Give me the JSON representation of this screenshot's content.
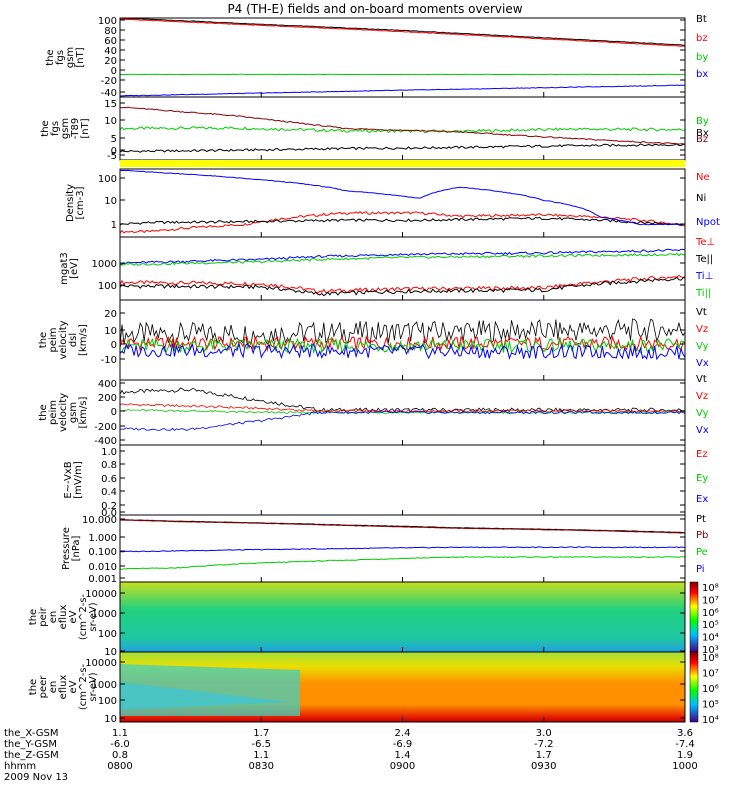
{
  "title": "P4 (TH-E) fields and on-board moments overview",
  "colors": {
    "black": "#000000",
    "red": "#ff0000",
    "green": "#00cc00",
    "blue": "#0000ff",
    "darkred": "#880000",
    "yellow": "#ffff00"
  },
  "time_labels": [
    "0800",
    "0830",
    "0900",
    "0930",
    "1000"
  ],
  "footer": {
    "rows": [
      {
        "label": "the_X-GSM",
        "values": [
          "1.1",
          "1.7",
          "2.4",
          "3.0",
          "3.6"
        ]
      },
      {
        "label": "the_Y-GSM",
        "values": [
          "-6.0",
          "-6.5",
          "-6.9",
          "-7.2",
          "-7.4"
        ]
      },
      {
        "label": "the_Z-GSM",
        "values": [
          "0.8",
          "1.1",
          "1.4",
          "1.7",
          "1.9"
        ]
      },
      {
        "label": "hhmm",
        "values": [
          "0800",
          "0830",
          "0900",
          "0930",
          "1000"
        ]
      }
    ],
    "date": "2009 Nov 13"
  },
  "chart_data": [
    {
      "type": "line",
      "ylabel": [
        "the",
        "fgs",
        "gsm",
        "[nT]"
      ],
      "ticks": [
        "100",
        "80",
        "60",
        "40",
        "20",
        "0",
        "-20",
        "-40"
      ],
      "ylim": [
        -40,
        100
      ],
      "x": [
        0,
        0.5,
        1
      ],
      "series": [
        {
          "name": "Bt",
          "color": "black",
          "values": [
            100,
            78,
            52
          ]
        },
        {
          "name": "bz",
          "color": "red",
          "values": [
            98,
            76,
            50
          ]
        },
        {
          "name": "by",
          "color": "green",
          "values": [
            0,
            0,
            0
          ]
        },
        {
          "name": "bx",
          "color": "blue",
          "values": [
            -38,
            -28,
            -19
          ]
        }
      ]
    },
    {
      "type": "line",
      "ylabel": [
        "the",
        "fgs",
        "gsm",
        "-T89",
        "[nT]"
      ],
      "ticks": [
        "15",
        "10",
        "5",
        "0",
        "-5"
      ],
      "ylim": [
        -7,
        15
      ],
      "x": [
        0,
        0.2,
        0.4,
        0.6,
        0.8,
        1
      ],
      "series": [
        {
          "name": "By",
          "color": "green",
          "values": [
            4,
            4.2,
            3.2,
            3,
            3.8,
            3.6
          ]
        },
        {
          "name": "Bx",
          "color": "black",
          "values": [
            -4,
            -3.6,
            -3,
            -2.6,
            -2,
            -1.6
          ]
        },
        {
          "name": "Bz",
          "color": "darkred",
          "values": [
            11.5,
            8.5,
            4,
            2.8,
            0.5,
            -1.5
          ]
        }
      ]
    },
    {
      "type": "line",
      "ylabel": [
        "Density",
        "[cm-3]"
      ],
      "ticks": [
        "100",
        "10",
        "1"
      ],
      "log": true,
      "ylim": [
        0.3,
        200
      ],
      "x": [
        0,
        0.05,
        0.22,
        0.4,
        0.53,
        0.6,
        0.75,
        0.85,
        0.92,
        1
      ],
      "series": [
        {
          "name": "Ne",
          "color": "red",
          "values": [
            0.5,
            0.5,
            1,
            3,
            3,
            2.2,
            2.5,
            2,
            1.5,
            0.9
          ]
        },
        {
          "name": "Ni",
          "color": "black",
          "values": [
            1,
            1.2,
            1.3,
            1.5,
            1.5,
            1.6,
            1.8,
            1.5,
            1.2,
            1
          ]
        },
        {
          "name": "Npot",
          "color": "blue",
          "values": [
            180,
            150,
            80,
            25,
            12,
            35,
            10,
            2,
            1,
            1
          ]
        }
      ]
    },
    {
      "type": "line",
      "ylabel": [
        "mgat3",
        "[eV]"
      ],
      "ticks": [
        "1000",
        "100"
      ],
      "log": true,
      "ylim": [
        50,
        7000
      ],
      "x": [
        0,
        0.25,
        0.35,
        0.5,
        0.75,
        1
      ],
      "series": [
        {
          "name": "Te⊥",
          "color": "red",
          "values": [
            200,
            180,
            100,
            120,
            130,
            320
          ]
        },
        {
          "name": "Te||",
          "color": "black",
          "values": [
            150,
            140,
            80,
            100,
            110,
            280
          ]
        },
        {
          "name": "Ti⊥",
          "color": "blue",
          "values": [
            900,
            1200,
            1500,
            1800,
            2000,
            2500
          ]
        },
        {
          "name": "Ti||",
          "color": "green",
          "values": [
            800,
            1000,
            1200,
            1400,
            1600,
            1800
          ]
        }
      ]
    },
    {
      "type": "line",
      "ylabel": [
        "the",
        "peim",
        "velocity",
        "dsl",
        "[km/s]"
      ],
      "ticks": [
        "20",
        "10",
        "0",
        "-10"
      ],
      "ylim": [
        -15,
        20
      ],
      "x": [
        0,
        1
      ],
      "series": [
        {
          "name": "Vt",
          "color": "black",
          "values": [
            5,
            7
          ]
        },
        {
          "name": "Vz",
          "color": "red",
          "values": [
            1,
            1
          ]
        },
        {
          "name": "Vy",
          "color": "green",
          "values": [
            0,
            0
          ]
        },
        {
          "name": "Vx",
          "color": "blue",
          "values": [
            -2,
            -3
          ]
        }
      ]
    },
    {
      "type": "line",
      "ylabel": [
        "the",
        "peim",
        "velocity",
        "gsm",
        "[km/s]"
      ],
      "ticks": [
        "400",
        "200",
        "0",
        "-200",
        "-400"
      ],
      "ylim": [
        -400,
        400
      ],
      "x": [
        0,
        0.12,
        0.25,
        0.35,
        1
      ],
      "series": [
        {
          "name": "Vt",
          "color": "black",
          "values": [
            250,
            280,
            150,
            30,
            30
          ]
        },
        {
          "name": "Vz",
          "color": "red",
          "values": [
            100,
            80,
            50,
            20,
            20
          ]
        },
        {
          "name": "Vy",
          "color": "green",
          "values": [
            30,
            20,
            0,
            0,
            0
          ]
        },
        {
          "name": "Vx",
          "color": "blue",
          "values": [
            -200,
            -210,
            -100,
            0,
            0
          ]
        }
      ]
    },
    {
      "type": "line",
      "ylabel": [
        "E~-VxB",
        "[mV/m]"
      ],
      "ticks": [
        "1.0",
        "0.8",
        "0.6",
        "0.4",
        "0.2",
        "0.0"
      ],
      "ylim": [
        0,
        1
      ],
      "series": [
        {
          "name": "Ez",
          "color": "red",
          "values": []
        },
        {
          "name": "Ey",
          "color": "green",
          "values": []
        },
        {
          "name": "Ex",
          "color": "blue",
          "values": []
        }
      ]
    },
    {
      "type": "line",
      "ylabel": [
        "Pressure",
        "[nPa]"
      ],
      "ticks": [
        "10.000",
        "1.000",
        "0.100",
        "0.010",
        "0.001"
      ],
      "log": true,
      "ylim": [
        0.001,
        20
      ],
      "x": [
        0,
        0.1,
        0.4,
        0.6,
        1
      ],
      "series": [
        {
          "name": "Pt",
          "color": "black",
          "values": [
            10,
            8,
            4.5,
            3,
            1.5
          ]
        },
        {
          "name": "Pb",
          "color": "darkred",
          "values": [
            9.5,
            7.5,
            4.2,
            2.8,
            1.4
          ]
        },
        {
          "name": "Pe",
          "color": "green",
          "values": [
            0.007,
            0.008,
            0.025,
            0.04,
            0.04
          ]
        },
        {
          "name": "Pi",
          "color": "blue",
          "values": [
            0.09,
            0.1,
            0.14,
            0.17,
            0.17
          ]
        }
      ]
    },
    {
      "type": "heatmap",
      "ylabel": [
        "the",
        "peir",
        "en",
        "eflux",
        "eV",
        "(cm^2-s-",
        "sr-eV)"
      ],
      "ticks": [
        "10000",
        "1000",
        "100",
        "10"
      ],
      "colorbar": [
        "10⁸",
        "10⁷",
        "10⁶",
        "10⁵",
        "10⁴",
        "10³"
      ]
    },
    {
      "type": "heatmap",
      "ylabel": [
        "the",
        "peer",
        "en",
        "eflux",
        "eV",
        "(cm^2-s-",
        "sr-eV)"
      ],
      "ticks": [
        "10000",
        "1000",
        "100",
        "10"
      ],
      "colorbar": [
        "10⁸",
        "10⁷",
        "10⁶",
        "10⁵",
        "10⁴"
      ]
    }
  ]
}
